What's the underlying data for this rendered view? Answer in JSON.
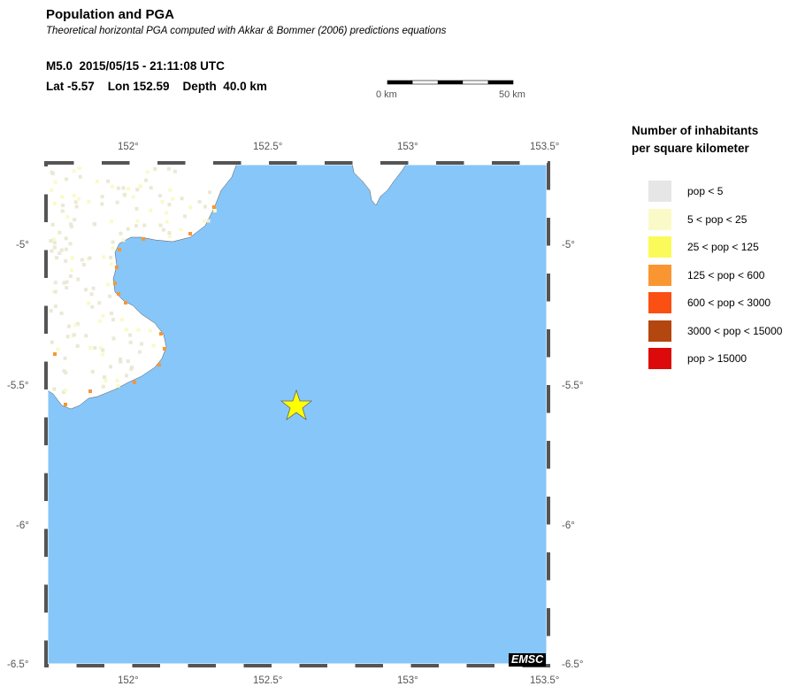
{
  "header": {
    "title": "Population and PGA",
    "subtitle": "Theoretical horizontal PGA computed with Akkar & Bommer (2006) predictions equations",
    "event_line": "M5.0  2015/05/15 - 21:11:08 UTC",
    "location_line": "Lat -5.57    Lon 152.59    Depth  40.0 km"
  },
  "scale_bar": {
    "start_label": "0 km",
    "end_label": "50 km"
  },
  "map": {
    "lon_ticks": [
      "152°",
      "152.5°",
      "153°",
      "153.5°"
    ],
    "lat_ticks": [
      "-5°",
      "-5.5°",
      "-6°",
      "-6.5°"
    ],
    "lon_range": [
      151.7,
      153.5
    ],
    "lat_range": [
      -6.5,
      -4.7
    ],
    "epicenter": {
      "lat": -5.57,
      "lon": 152.59,
      "marker": "star-icon",
      "color": "#ffff00"
    },
    "colors": {
      "sea": "#87c6f9",
      "land": "#ffffff"
    },
    "logo": "EMSC"
  },
  "legend": {
    "title_line1": "Number of inhabitants",
    "title_line2": "per square kilometer",
    "items": [
      {
        "label": "pop < 5",
        "color": "#e6e6e6"
      },
      {
        "label": "5 < pop < 25",
        "color": "#fafac8"
      },
      {
        "label": "25 < pop < 125",
        "color": "#fafa5a"
      },
      {
        "label": "125 < pop < 600",
        "color": "#fa9632"
      },
      {
        "label": "600 < pop < 3000",
        "color": "#fa5014"
      },
      {
        "label": "3000 < pop < 15000",
        "color": "#b4460f"
      },
      {
        "label": "pop > 15000",
        "color": "#dc0a0a"
      }
    ]
  }
}
